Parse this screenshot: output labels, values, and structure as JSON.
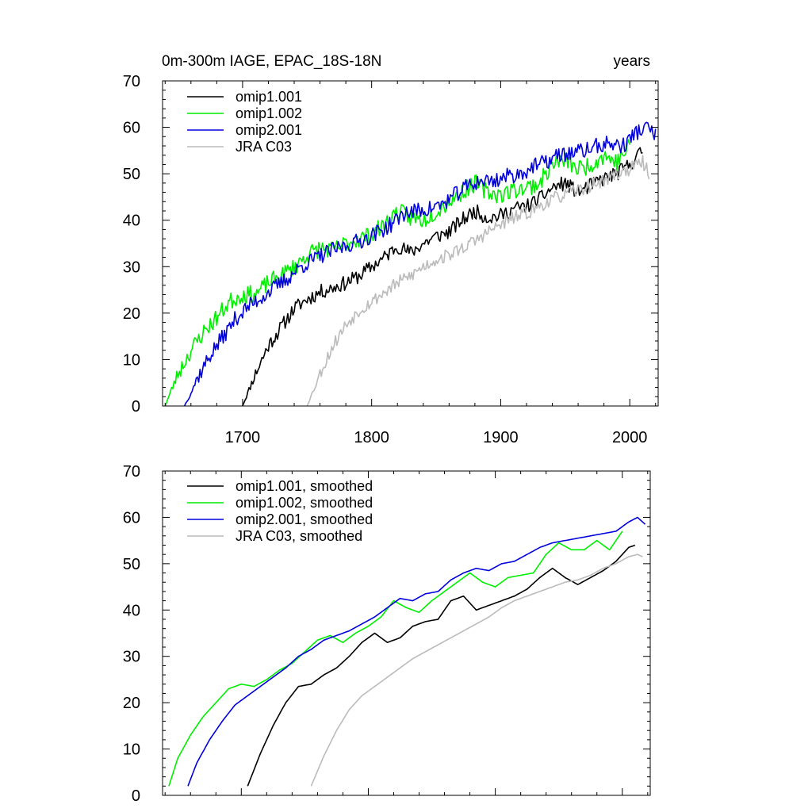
{
  "chart_data": [
    {
      "type": "line",
      "title": "0m-300m IAGE, EPAC_18S-18N",
      "units": "years",
      "xlim": [
        1638,
        2022
      ],
      "ylim": [
        0,
        70
      ],
      "x_ticks": [
        1700,
        1800,
        1900,
        2000
      ],
      "y_ticks": [
        0,
        10,
        20,
        30,
        40,
        50,
        60,
        70
      ],
      "grid": false,
      "legend_position": "top-left",
      "series": [
        {
          "name": "omip1.001",
          "color": "#000000",
          "noise": 1.0,
          "seed": 11,
          "x": [
            1700,
            1710,
            1720,
            1730,
            1740,
            1750,
            1760,
            1770,
            1780,
            1790,
            1800,
            1810,
            1820,
            1830,
            1840,
            1850,
            1860,
            1870,
            1880,
            1890,
            1900,
            1910,
            1920,
            1930,
            1940,
            1950,
            1960,
            1970,
            1980,
            1990,
            2000,
            2010
          ],
          "y": [
            0,
            7,
            13,
            17,
            21,
            23,
            24.5,
            25.5,
            26.5,
            28,
            30,
            32,
            34.5,
            33,
            35,
            36.5,
            37.5,
            40,
            42,
            40.5,
            41,
            42.5,
            43,
            44.5,
            47,
            48,
            46,
            47.5,
            49,
            50,
            52,
            55
          ]
        },
        {
          "name": "omip1.002",
          "color": "#00ee00",
          "noise": 1.2,
          "seed": 23,
          "x": [
            1640,
            1650,
            1660,
            1670,
            1680,
            1690,
            1700,
            1710,
            1720,
            1730,
            1740,
            1750,
            1760,
            1770,
            1780,
            1790,
            1800,
            1810,
            1820,
            1830,
            1840,
            1850,
            1860,
            1870,
            1880,
            1890,
            1900,
            1910,
            1920,
            1930,
            1940,
            1950,
            1960,
            1970,
            1980,
            1990,
            2000
          ],
          "y": [
            0,
            7,
            12,
            16,
            19,
            22.5,
            24,
            24,
            26.5,
            28,
            30,
            32.5,
            34,
            33.5,
            35,
            36,
            37,
            39,
            42,
            40.5,
            40,
            42,
            44,
            46,
            48,
            46,
            45.5,
            46.5,
            47,
            48,
            52,
            53,
            51,
            52,
            54,
            52.5,
            56
          ]
        },
        {
          "name": "omip2.001",
          "color": "#0000dd",
          "noise": 1.1,
          "seed": 37,
          "x": [
            1655,
            1665,
            1675,
            1685,
            1695,
            1705,
            1715,
            1725,
            1735,
            1745,
            1755,
            1765,
            1775,
            1785,
            1795,
            1805,
            1815,
            1825,
            1835,
            1845,
            1855,
            1865,
            1875,
            1885,
            1895,
            1905,
            1915,
            1925,
            1935,
            1945,
            1955,
            1965,
            1975,
            1985,
            1995,
            2005,
            2015,
            2020
          ],
          "y": [
            0,
            6,
            11,
            15,
            19,
            21.5,
            23.5,
            25.5,
            27.5,
            30,
            31.5,
            33,
            34,
            35,
            36,
            37.5,
            39,
            41.5,
            42,
            42.5,
            43.5,
            45.5,
            47.5,
            48.5,
            48.5,
            49.5,
            50,
            51.5,
            52.5,
            54,
            54.5,
            55,
            56,
            56.5,
            56,
            59,
            60,
            58
          ]
        },
        {
          "name": "JRA C03",
          "color": "#bbbbbb",
          "noise": 0.9,
          "seed": 53,
          "x": [
            1750,
            1760,
            1770,
            1780,
            1790,
            1800,
            1810,
            1820,
            1830,
            1840,
            1850,
            1860,
            1870,
            1880,
            1890,
            1900,
            1910,
            1920,
            1930,
            1940,
            1950,
            1960,
            1970,
            1980,
            1990,
            2000,
            2010,
            2015
          ],
          "y": [
            0,
            7,
            13,
            17.5,
            20.5,
            22.5,
            24.5,
            26.5,
            28,
            30,
            31.5,
            32.5,
            34,
            35.5,
            37.5,
            39,
            40.5,
            41.5,
            43,
            44.5,
            45.5,
            46.5,
            47.5,
            48.5,
            50,
            51,
            52.5,
            50
          ]
        }
      ]
    },
    {
      "type": "line",
      "title": "",
      "units": "",
      "xlim": [
        1638,
        2022
      ],
      "ylim": [
        0,
        70
      ],
      "y_ticks": [
        0,
        10,
        20,
        30,
        40,
        50,
        60,
        70
      ],
      "grid": false,
      "legend_position": "top-left",
      "series": [
        {
          "name": "omip1.001, smoothed",
          "color": "#000000",
          "x": [
            1705,
            1715,
            1725,
            1735,
            1745,
            1755,
            1765,
            1775,
            1785,
            1795,
            1805,
            1815,
            1825,
            1835,
            1845,
            1855,
            1865,
            1875,
            1885,
            1895,
            1905,
            1915,
            1925,
            1935,
            1945,
            1955,
            1965,
            1975,
            1985,
            1995,
            2005,
            2010
          ],
          "y": [
            2,
            9,
            15,
            20,
            23.5,
            24,
            26,
            27.5,
            30,
            33,
            35,
            33,
            34,
            36.5,
            37.5,
            38,
            42,
            43,
            40,
            41,
            42,
            43,
            44.5,
            47,
            49,
            47,
            45.5,
            47,
            48.5,
            50.5,
            53.5,
            54
          ]
        },
        {
          "name": "omip1.002, smoothed",
          "color": "#00ee00",
          "x": [
            1643,
            1650,
            1660,
            1670,
            1680,
            1690,
            1700,
            1710,
            1720,
            1730,
            1740,
            1750,
            1760,
            1770,
            1780,
            1790,
            1800,
            1810,
            1820,
            1830,
            1840,
            1850,
            1860,
            1870,
            1880,
            1890,
            1900,
            1910,
            1920,
            1930,
            1940,
            1950,
            1960,
            1970,
            1980,
            1990,
            2000
          ],
          "y": [
            2,
            8,
            13,
            17,
            20,
            23,
            24,
            23.5,
            25,
            27,
            28.5,
            31,
            33.5,
            34.5,
            33,
            35,
            36.5,
            38.5,
            42,
            40.5,
            39.5,
            42,
            44,
            46,
            48,
            46,
            45,
            47,
            47.5,
            48,
            52,
            54.5,
            53,
            53,
            55,
            53,
            57
          ]
        },
        {
          "name": "omip2.001, smoothed",
          "color": "#0000dd",
          "x": [
            1658,
            1665,
            1675,
            1685,
            1695,
            1705,
            1715,
            1725,
            1735,
            1745,
            1755,
            1765,
            1775,
            1785,
            1795,
            1805,
            1815,
            1825,
            1835,
            1845,
            1855,
            1865,
            1875,
            1885,
            1895,
            1905,
            1915,
            1925,
            1935,
            1945,
            1955,
            1965,
            1975,
            1985,
            1995,
            2005,
            2012,
            2018
          ],
          "y": [
            2,
            7,
            12,
            16,
            19.5,
            21.5,
            23.5,
            25.5,
            27.5,
            30,
            31.5,
            33.5,
            34.5,
            35.5,
            37,
            38.5,
            40.5,
            42.5,
            42,
            43.5,
            44,
            46.5,
            48,
            49,
            48.5,
            50,
            50.5,
            52,
            53.5,
            54.5,
            55,
            55.5,
            56,
            56.5,
            57,
            59,
            60,
            58.5
          ]
        },
        {
          "name": "JRA C03, smoothed",
          "color": "#bbbbbb",
          "x": [
            1755,
            1765,
            1775,
            1785,
            1795,
            1805,
            1815,
            1825,
            1835,
            1845,
            1855,
            1865,
            1875,
            1885,
            1895,
            1905,
            1915,
            1925,
            1935,
            1945,
            1955,
            1965,
            1975,
            1985,
            1995,
            2005,
            2012,
            2016
          ],
          "y": [
            2,
            8.5,
            14,
            18.5,
            21.5,
            23.5,
            25.5,
            27.5,
            29.5,
            31,
            32.5,
            34,
            35.5,
            37,
            38.5,
            40.5,
            42,
            43,
            44,
            45,
            46,
            46.5,
            47.5,
            49,
            50,
            51.5,
            52,
            51.5
          ]
        }
      ]
    }
  ]
}
